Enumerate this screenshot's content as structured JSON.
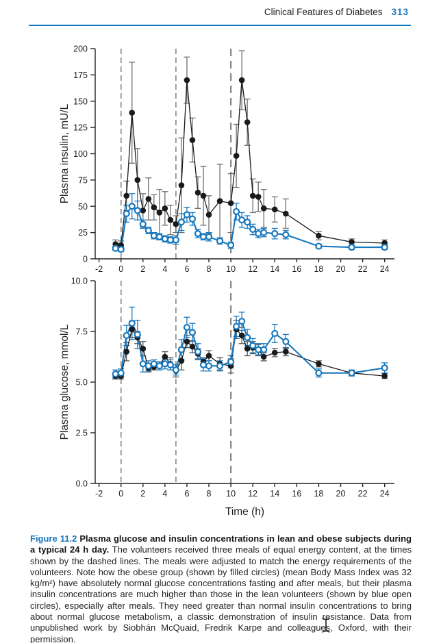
{
  "page": {
    "header": {
      "title": "Clinical Features of Diabetes",
      "page_number": "313"
    },
    "caption": {
      "label": "Figure 11.2",
      "bold_title": "Plasma glucose and insulin concentrations in lean and obese subjects during a typical 24 h day.",
      "body": "The volunteers received three meals of equal energy content, at the times shown by the dashed lines. The meals were adjusted to match the energy requirements of the volunteers. Note how the obese group (shown by filled circles) (mean Body Mass Index was 32 kg/m²) have absolutely normal glucose concentrations fasting and after meals, but their plasma insulin concentrations are much higher than those in the lean volunteers (shown by blue open circles), especially after meals. They need greater than normal insulin concentrations to bring about normal glucose metabolism, a classic demonstration of insulin resistance. Data from unpublished work by Siobhán McQuaid, Fredrik Karpe and colleagues, Oxford, with their permission."
    },
    "colors": {
      "accent_blue": "#1878be",
      "obese_series": "#1a1a1a",
      "lean_series": "#1878be",
      "error_bar_gray": "#6e6e6e",
      "dashed_meal_1": "#b4b4b4",
      "dashed_meal_2": "#8d8d8d",
      "dashed_meal_3": "#404040"
    }
  },
  "chart_data": [
    {
      "type": "line",
      "title": "",
      "ylabel": "Plasma insulin, mU/L",
      "xlabel": "",
      "xlim": [
        -2.5,
        24.9
      ],
      "ylim": [
        0,
        200
      ],
      "xticks": [
        -2,
        0,
        2,
        4,
        6,
        8,
        10,
        12,
        14,
        16,
        18,
        20,
        22,
        24
      ],
      "yticks": [
        0,
        25,
        50,
        75,
        100,
        125,
        150,
        175,
        200
      ],
      "ytick_labels": [
        "0",
        "25",
        "50",
        "75",
        "100",
        "125",
        "150",
        "175",
        "200"
      ],
      "meal_times": [
        0,
        5,
        10
      ],
      "grid": false,
      "legend": "none (described in caption)",
      "x": [
        -0.5,
        0,
        0.5,
        1,
        1.5,
        2,
        2.5,
        3,
        3.5,
        4,
        4.5,
        5,
        5.5,
        6,
        6.5,
        7,
        7.5,
        8,
        9,
        10,
        10.5,
        11,
        11.5,
        12,
        12.5,
        13,
        14,
        15,
        18,
        21,
        24
      ],
      "series": [
        {
          "name": "obese",
          "label": "Obese subjects (filled circles)",
          "marker": "filled-circle",
          "color": "#1a1a1a",
          "error_color": "#6e6e6e",
          "values": [
            14,
            13,
            60,
            139,
            75,
            46,
            57,
            49,
            44,
            48,
            37,
            33,
            70,
            170,
            113,
            63,
            60,
            42,
            55,
            53,
            98,
            170,
            130,
            60,
            59,
            48,
            47,
            43,
            22,
            16,
            15
          ],
          "err": [
            4,
            4,
            14,
            48,
            30,
            16,
            20,
            12,
            22,
            16,
            14,
            8,
            45,
            22,
            21,
            15,
            28,
            18,
            35,
            28,
            30,
            28,
            22,
            16,
            14,
            18,
            12,
            14,
            4,
            3,
            3
          ]
        },
        {
          "name": "lean",
          "label": "Lean subjects (blue open circles)",
          "marker": "open-circle",
          "color": "#1878be",
          "error_color": "#1878be",
          "values": [
            10,
            9,
            43,
            50,
            46,
            33,
            27,
            22,
            21,
            19,
            18,
            18,
            35,
            42,
            38,
            24,
            21,
            21,
            17,
            13,
            45,
            37,
            35,
            28,
            24,
            25,
            24,
            23,
            12,
            11,
            11
          ],
          "err": [
            2,
            2,
            8,
            12,
            9,
            4,
            3,
            3,
            3,
            3,
            3,
            4,
            8,
            7,
            6,
            4,
            3,
            4,
            3,
            3,
            8,
            7,
            6,
            5,
            4,
            4,
            5,
            4,
            2,
            2,
            2
          ]
        }
      ]
    },
    {
      "type": "line",
      "title": "",
      "ylabel": "Plasma glucose, mmol/L",
      "xlabel": "Time (h)",
      "xlim": [
        -2.5,
        24.9
      ],
      "ylim": [
        0,
        10
      ],
      "xticks": [
        -2,
        0,
        2,
        4,
        6,
        8,
        10,
        12,
        14,
        16,
        18,
        20,
        22,
        24
      ],
      "yticks": [
        0,
        2.5,
        5,
        7.5,
        10
      ],
      "ytick_labels": [
        "0.0",
        "2.5",
        "5.0",
        "7.5",
        "10.0"
      ],
      "meal_times": [
        0,
        5,
        10
      ],
      "grid": false,
      "legend": "none (described in caption)",
      "x": [
        -0.5,
        0,
        0.5,
        1,
        1.5,
        2,
        2.5,
        3,
        3.5,
        4,
        4.5,
        5,
        5.5,
        6,
        6.5,
        7,
        7.5,
        8,
        9,
        10,
        10.5,
        11,
        11.5,
        12,
        12.5,
        13,
        14,
        15,
        18,
        21,
        24
      ],
      "series": [
        {
          "name": "obese",
          "label": "Obese subjects (filled circles)",
          "marker": "filled-circle",
          "color": "#1a1a1a",
          "error_color": "#555555",
          "values": [
            5.3,
            5.3,
            6.5,
            7.6,
            7.2,
            6.65,
            5.7,
            5.75,
            5.8,
            6.25,
            5.9,
            5.55,
            6.05,
            7.0,
            6.75,
            6.4,
            6.0,
            6.3,
            5.9,
            5.8,
            7.6,
            7.3,
            6.65,
            6.7,
            6.6,
            6.25,
            6.45,
            6.5,
            5.9,
            5.45,
            5.3
          ],
          "err": [
            0.15,
            0.15,
            0.45,
            0.4,
            0.3,
            0.35,
            0.2,
            0.15,
            0.2,
            0.25,
            0.3,
            0.3,
            0.45,
            0.3,
            0.3,
            0.25,
            0.2,
            0.25,
            0.3,
            0.35,
            0.45,
            0.4,
            0.35,
            0.3,
            0.25,
            0.2,
            0.2,
            0.2,
            0.15,
            0.1,
            0.12
          ]
        },
        {
          "name": "lean",
          "label": "Lean subjects (blue open circles)",
          "marker": "open-circle",
          "color": "#1878be",
          "error_color": "#1878be",
          "values": [
            5.4,
            5.45,
            7.3,
            7.9,
            7.35,
            5.9,
            5.8,
            5.9,
            5.8,
            5.9,
            5.85,
            5.6,
            6.6,
            7.7,
            7.45,
            6.5,
            5.85,
            5.8,
            5.8,
            6.0,
            7.75,
            8.0,
            7.2,
            6.8,
            6.6,
            6.6,
            7.4,
            7.0,
            5.45,
            5.45,
            5.7
          ],
          "err": [
            0.2,
            0.2,
            0.5,
            0.8,
            0.7,
            0.4,
            0.25,
            0.2,
            0.2,
            0.25,
            0.25,
            0.25,
            0.5,
            0.5,
            0.45,
            0.4,
            0.3,
            0.25,
            0.25,
            0.3,
            0.5,
            0.45,
            0.4,
            0.35,
            0.3,
            0.3,
            0.45,
            0.35,
            0.2,
            0.15,
            0.25
          ]
        }
      ]
    }
  ]
}
